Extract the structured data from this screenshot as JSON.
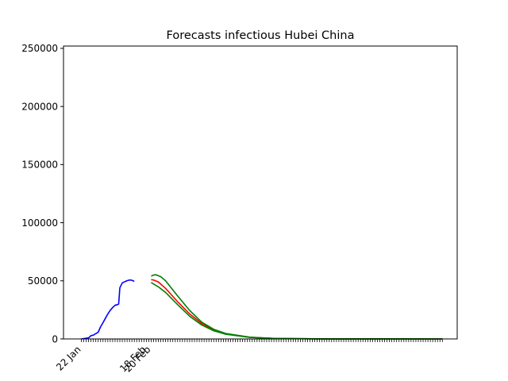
{
  "chart_data": {
    "type": "line",
    "title": "Forecasts infectious Hubei China",
    "xlabel": "",
    "ylabel": "",
    "ylim": [
      0,
      252000
    ],
    "y_ticks": [
      0,
      50000,
      100000,
      150000,
      200000,
      250000
    ],
    "y_tick_labels": [
      "0",
      "50000",
      "100000",
      "150000",
      "200000",
      "250000"
    ],
    "x_range_days": [
      0,
      150
    ],
    "x_tick_labels": [
      {
        "day": 0,
        "label": "22 Jan"
      },
      {
        "day": 27,
        "label": "18 Feb"
      },
      {
        "day": 29,
        "label": "20 Feb"
      }
    ],
    "grid": false,
    "legend": "none",
    "colors": {
      "observed": "#0000ff",
      "forecast": "#ff0000",
      "bounds": "#008000"
    },
    "series": [
      {
        "color": "#0000ff",
        "points": [
          [
            0,
            0
          ],
          [
            3,
            900
          ],
          [
            4,
            2800
          ],
          [
            5,
            3300
          ],
          [
            6,
            4600
          ],
          [
            7,
            5800
          ],
          [
            8,
            10500
          ],
          [
            9,
            14000
          ],
          [
            10,
            17800
          ],
          [
            11,
            21500
          ],
          [
            12,
            24600
          ],
          [
            13,
            27000
          ],
          [
            14,
            29000
          ],
          [
            15,
            29500
          ],
          [
            15.5,
            30000
          ],
          [
            16,
            44000
          ],
          [
            17,
            48200
          ],
          [
            18,
            49200
          ],
          [
            19,
            50100
          ],
          [
            20,
            50700
          ],
          [
            21,
            50500
          ],
          [
            22,
            49500
          ]
        ]
      },
      {
        "color": "#ff0000",
        "points": [
          [
            29,
            51000
          ],
          [
            30,
            50700
          ],
          [
            32,
            49000
          ],
          [
            35,
            43500
          ],
          [
            40,
            32000
          ],
          [
            45,
            21500
          ],
          [
            50,
            13300
          ],
          [
            55,
            7700
          ],
          [
            60,
            4400
          ],
          [
            70,
            1400
          ],
          [
            80,
            400
          ],
          [
            100,
            50
          ],
          [
            150,
            0
          ]
        ]
      },
      {
        "color": "#008000",
        "points": [
          [
            29,
            54000
          ],
          [
            30,
            55000
          ],
          [
            31,
            55200
          ],
          [
            33,
            53500
          ],
          [
            35,
            50000
          ],
          [
            40,
            37000
          ],
          [
            45,
            24500
          ],
          [
            50,
            14500
          ],
          [
            55,
            8300
          ],
          [
            60,
            4700
          ],
          [
            70,
            1500
          ],
          [
            80,
            450
          ],
          [
            100,
            60
          ],
          [
            150,
            0
          ]
        ]
      },
      {
        "color": "#008000",
        "points": [
          [
            29,
            48500
          ],
          [
            32,
            44800
          ],
          [
            35,
            40000
          ],
          [
            40,
            29500
          ],
          [
            45,
            19500
          ],
          [
            50,
            12000
          ],
          [
            55,
            7000
          ],
          [
            60,
            4000
          ],
          [
            70,
            1300
          ],
          [
            80,
            380
          ],
          [
            100,
            45
          ],
          [
            150,
            0
          ]
        ]
      }
    ]
  }
}
